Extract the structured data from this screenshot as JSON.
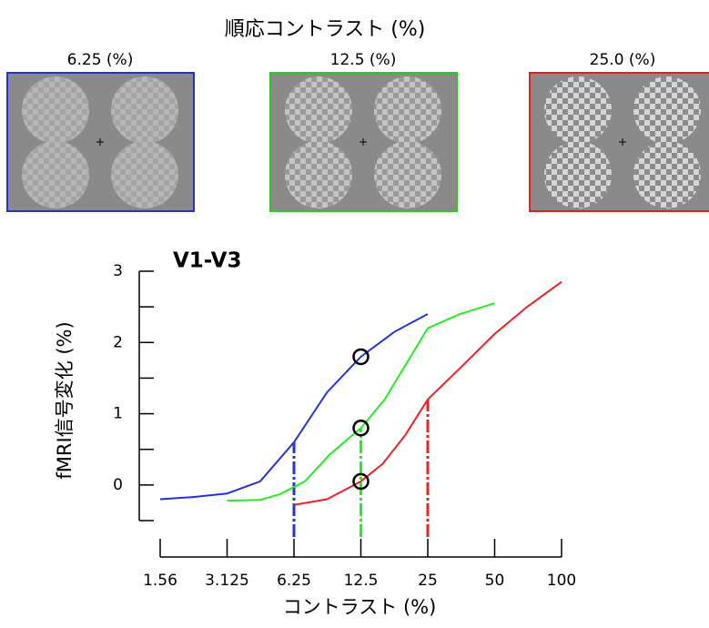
{
  "stimuli": {
    "title": "順応コントラスト (%)",
    "panels": [
      {
        "label": "6.25 (%)",
        "color": "#2233cc"
      },
      {
        "label": "12.5 (%)",
        "color": "#22cc22"
      },
      {
        "label": "25.0 (%)",
        "color": "#dd2222"
      }
    ]
  },
  "chart_data": {
    "type": "line",
    "title": "V1-V3",
    "xlabel": "コントラスト (%)",
    "ylabel": "fMRI信号変化 (%)",
    "xscale": "log",
    "xlim": [
      1.5625,
      100
    ],
    "xticks": [
      {
        "value": 1.5625,
        "label": "1.56"
      },
      3.125,
      6.25,
      12.5,
      25,
      50,
      100
    ],
    "ylim": [
      -0.5,
      3
    ],
    "yticks": [
      0,
      1,
      2,
      3
    ],
    "yminor_ticks": [
      -0.5,
      0.5,
      1.5,
      2.5
    ],
    "marker_x": 12.5,
    "series": [
      {
        "color": "#2233dd",
        "adapt_x": 6.25,
        "x": [
          1.5625,
          2.2,
          3.125,
          4.4,
          6.25,
          8.8,
          12.5,
          17.7,
          25
        ],
        "values": [
          -0.2,
          -0.17,
          -0.12,
          0.05,
          0.6,
          1.3,
          1.8,
          2.15,
          2.4
        ]
      },
      {
        "color": "#22ee22",
        "adapt_x": 12.5,
        "x": [
          3.125,
          4.4,
          5.4,
          7,
          9,
          12.5,
          16,
          20,
          25,
          35,
          50
        ],
        "values": [
          -0.22,
          -0.21,
          -0.13,
          0.05,
          0.42,
          0.8,
          1.2,
          1.7,
          2.2,
          2.4,
          2.55
        ]
      },
      {
        "color": "#ee2222",
        "adapt_x": 25,
        "x": [
          6.25,
          8.8,
          12.5,
          15.7,
          19.8,
          25,
          36,
          50,
          70,
          100
        ],
        "values": [
          -0.28,
          -0.2,
          0.05,
          0.3,
          0.7,
          1.2,
          1.68,
          2.12,
          2.5,
          2.85
        ]
      }
    ]
  }
}
